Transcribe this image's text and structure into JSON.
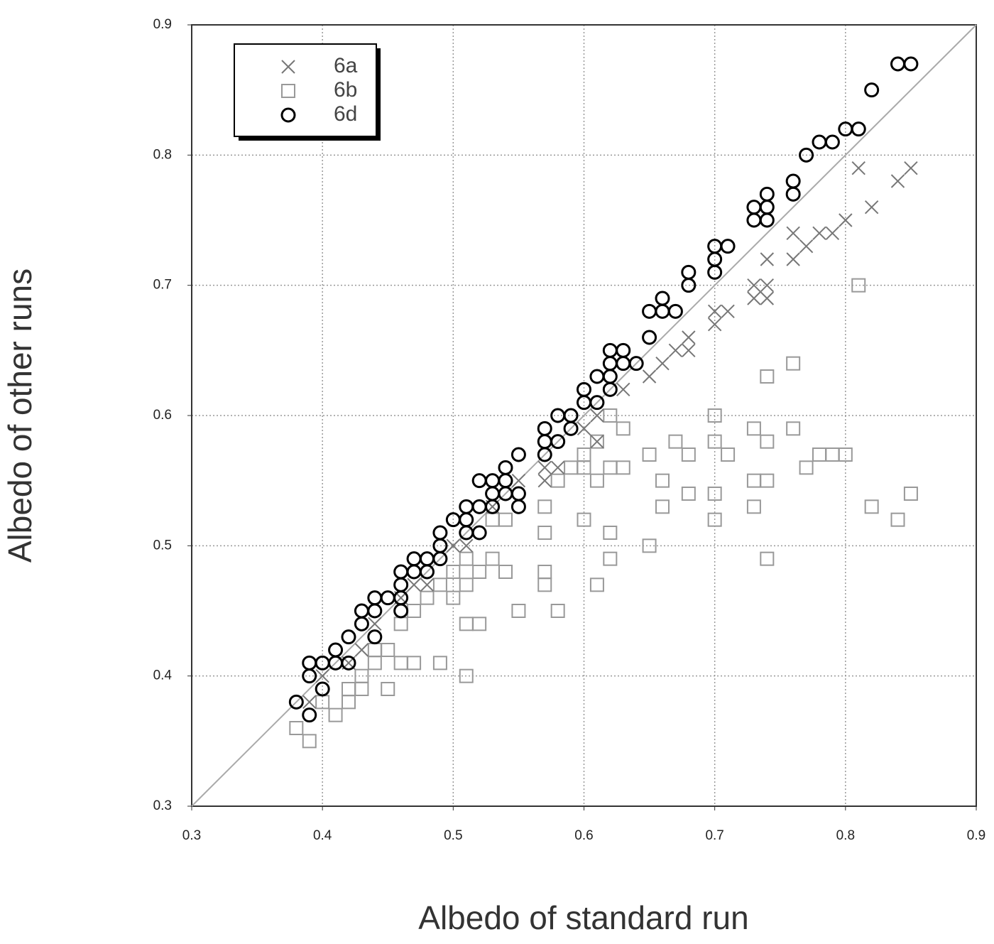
{
  "chart_data": {
    "type": "scatter",
    "x_label": "Albedo of standard run",
    "y_label": "Albedo of other runs",
    "xlim": [
      0.3,
      0.9
    ],
    "ylim": [
      0.3,
      0.9
    ],
    "xticks": [
      0.3,
      0.4,
      0.5,
      0.6,
      0.7,
      0.8,
      0.9
    ],
    "yticks": [
      0.3,
      0.4,
      0.5,
      0.6,
      0.7,
      0.8,
      0.9
    ],
    "grid": true,
    "legend": "upper left",
    "series": [
      {
        "name": "6a",
        "marker": "x",
        "color": "#777777",
        "x": [
          0.39,
          0.4,
          0.42,
          0.43,
          0.44,
          0.46,
          0.47,
          0.48,
          0.5,
          0.51,
          0.53,
          0.55,
          0.57,
          0.57,
          0.58,
          0.6,
          0.61,
          0.61,
          0.63,
          0.65,
          0.66,
          0.67,
          0.68,
          0.68,
          0.7,
          0.7,
          0.71,
          0.73,
          0.73,
          0.74,
          0.74,
          0.74,
          0.76,
          0.76,
          0.77,
          0.78,
          0.79,
          0.8,
          0.81,
          0.82,
          0.84,
          0.85
        ],
        "values": [
          0.38,
          0.4,
          0.41,
          0.42,
          0.44,
          0.46,
          0.47,
          0.47,
          0.5,
          0.5,
          0.53,
          0.55,
          0.55,
          0.56,
          0.56,
          0.59,
          0.58,
          0.6,
          0.62,
          0.63,
          0.64,
          0.65,
          0.66,
          0.65,
          0.67,
          0.68,
          0.68,
          0.7,
          0.69,
          0.69,
          0.7,
          0.72,
          0.72,
          0.74,
          0.73,
          0.74,
          0.74,
          0.75,
          0.79,
          0.76,
          0.78,
          0.79
        ]
      },
      {
        "name": "6b",
        "marker": "square",
        "color": "#999999",
        "x": [
          0.38,
          0.39,
          0.4,
          0.41,
          0.42,
          0.42,
          0.43,
          0.43,
          0.44,
          0.44,
          0.45,
          0.45,
          0.46,
          0.46,
          0.47,
          0.47,
          0.48,
          0.49,
          0.49,
          0.5,
          0.5,
          0.51,
          0.51,
          0.51,
          0.51,
          0.52,
          0.52,
          0.53,
          0.53,
          0.54,
          0.54,
          0.55,
          0.57,
          0.57,
          0.57,
          0.57,
          0.58,
          0.58,
          0.59,
          0.6,
          0.6,
          0.6,
          0.61,
          0.61,
          0.61,
          0.62,
          0.62,
          0.62,
          0.62,
          0.63,
          0.63,
          0.65,
          0.65,
          0.66,
          0.66,
          0.67,
          0.68,
          0.68,
          0.7,
          0.7,
          0.7,
          0.7,
          0.71,
          0.73,
          0.73,
          0.73,
          0.74,
          0.74,
          0.74,
          0.74,
          0.76,
          0.76,
          0.77,
          0.78,
          0.79,
          0.8,
          0.81,
          0.82,
          0.84,
          0.85
        ],
        "values": [
          0.36,
          0.35,
          0.38,
          0.37,
          0.38,
          0.39,
          0.39,
          0.4,
          0.41,
          0.42,
          0.39,
          0.42,
          0.41,
          0.44,
          0.41,
          0.45,
          0.46,
          0.41,
          0.47,
          0.46,
          0.48,
          0.4,
          0.44,
          0.47,
          0.49,
          0.44,
          0.48,
          0.49,
          0.52,
          0.48,
          0.52,
          0.45,
          0.47,
          0.48,
          0.51,
          0.53,
          0.45,
          0.55,
          0.56,
          0.52,
          0.56,
          0.57,
          0.47,
          0.55,
          0.58,
          0.49,
          0.51,
          0.56,
          0.6,
          0.56,
          0.59,
          0.5,
          0.57,
          0.53,
          0.55,
          0.58,
          0.54,
          0.57,
          0.52,
          0.54,
          0.58,
          0.6,
          0.57,
          0.53,
          0.55,
          0.59,
          0.49,
          0.55,
          0.58,
          0.63,
          0.59,
          0.64,
          0.56,
          0.57,
          0.57,
          0.57,
          0.7,
          0.53,
          0.52,
          0.54
        ]
      },
      {
        "name": "6d",
        "marker": "circle",
        "color": "#000000",
        "x": [
          0.38,
          0.39,
          0.39,
          0.39,
          0.4,
          0.4,
          0.41,
          0.41,
          0.42,
          0.42,
          0.43,
          0.43,
          0.44,
          0.44,
          0.44,
          0.45,
          0.46,
          0.46,
          0.46,
          0.46,
          0.47,
          0.47,
          0.48,
          0.48,
          0.49,
          0.49,
          0.49,
          0.5,
          0.51,
          0.51,
          0.51,
          0.52,
          0.52,
          0.52,
          0.53,
          0.53,
          0.53,
          0.54,
          0.54,
          0.54,
          0.55,
          0.55,
          0.55,
          0.57,
          0.57,
          0.57,
          0.58,
          0.58,
          0.59,
          0.59,
          0.6,
          0.6,
          0.61,
          0.61,
          0.62,
          0.62,
          0.62,
          0.62,
          0.63,
          0.63,
          0.64,
          0.65,
          0.65,
          0.66,
          0.66,
          0.67,
          0.68,
          0.68,
          0.7,
          0.7,
          0.7,
          0.71,
          0.73,
          0.73,
          0.74,
          0.74,
          0.74,
          0.76,
          0.76,
          0.77,
          0.78,
          0.79,
          0.8,
          0.81,
          0.82,
          0.84,
          0.85
        ],
        "values": [
          0.38,
          0.37,
          0.4,
          0.41,
          0.39,
          0.41,
          0.41,
          0.42,
          0.41,
          0.43,
          0.45,
          0.44,
          0.46,
          0.45,
          0.43,
          0.46,
          0.48,
          0.47,
          0.46,
          0.45,
          0.49,
          0.48,
          0.49,
          0.48,
          0.51,
          0.5,
          0.49,
          0.52,
          0.53,
          0.52,
          0.51,
          0.55,
          0.53,
          0.51,
          0.55,
          0.54,
          0.53,
          0.56,
          0.55,
          0.54,
          0.57,
          0.54,
          0.53,
          0.59,
          0.58,
          0.57,
          0.6,
          0.58,
          0.6,
          0.59,
          0.62,
          0.61,
          0.63,
          0.61,
          0.65,
          0.64,
          0.63,
          0.62,
          0.65,
          0.64,
          0.64,
          0.68,
          0.66,
          0.69,
          0.68,
          0.68,
          0.71,
          0.7,
          0.73,
          0.72,
          0.71,
          0.73,
          0.76,
          0.75,
          0.77,
          0.76,
          0.75,
          0.78,
          0.77,
          0.8,
          0.81,
          0.81,
          0.82,
          0.82,
          0.85,
          0.87,
          0.87
        ]
      }
    ]
  }
}
